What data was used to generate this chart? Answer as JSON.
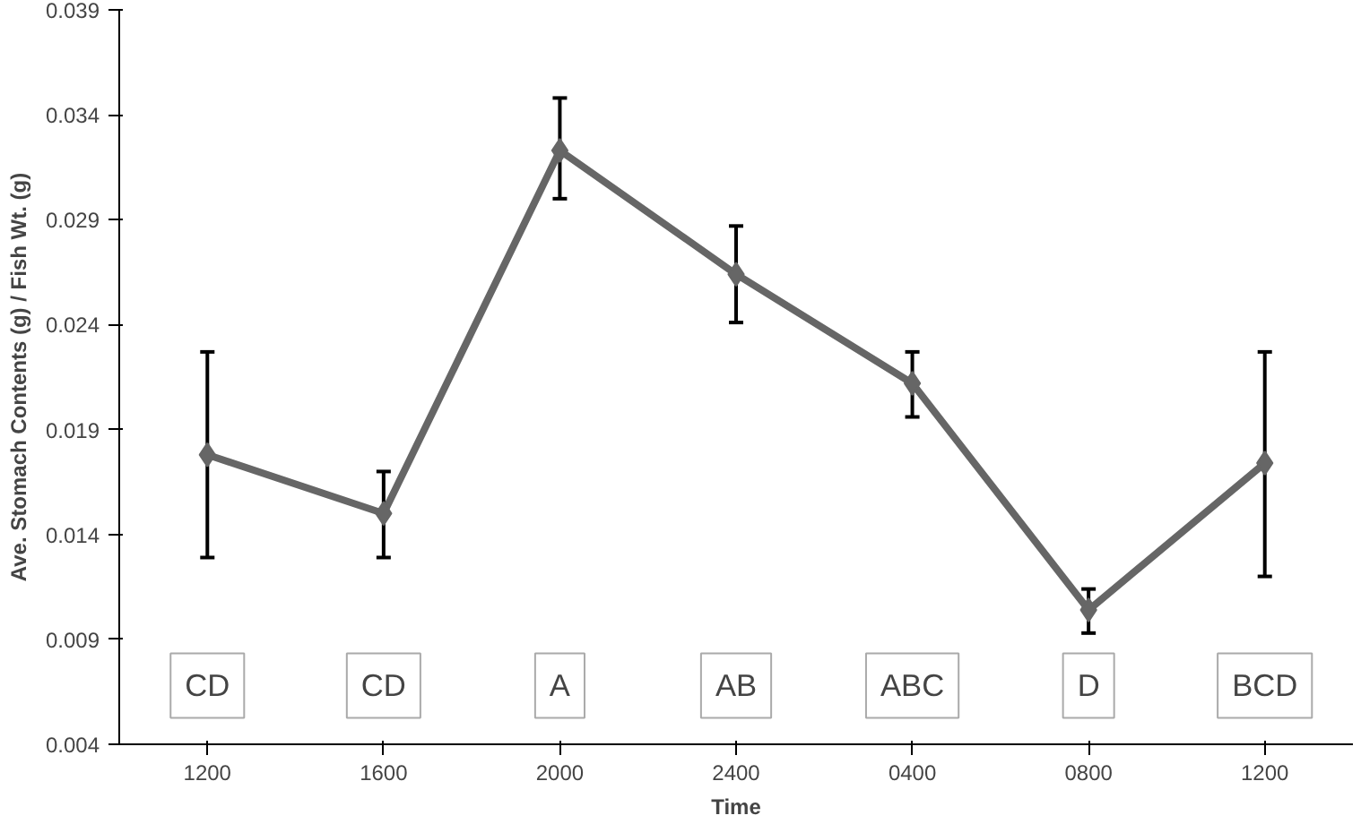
{
  "chart_data": {
    "type": "line",
    "xlabel": "Time",
    "ylabel": "Ave. Stomach Contents (g) / Fish Wt. (g)",
    "categories": [
      "1200",
      "1600",
      "2000",
      "2400",
      "0400",
      "0800",
      "1200"
    ],
    "series": [
      {
        "color": "#666666",
        "values": [
          0.0178,
          0.015,
          0.0323,
          0.0264,
          0.0212,
          0.0104,
          0.0174
        ],
        "errors": [
          [
            0.0129,
            0.0227
          ],
          [
            0.0129,
            0.017
          ],
          [
            0.03,
            0.0348
          ],
          [
            0.0241,
            0.0287
          ],
          [
            0.0196,
            0.0227
          ],
          [
            0.0093,
            0.0114
          ],
          [
            0.012,
            0.0227
          ]
        ]
      }
    ],
    "ylim": [
      0.004,
      0.039
    ],
    "yticks": [
      0.004,
      0.009,
      0.014,
      0.019,
      0.024,
      0.029,
      0.034,
      0.039
    ],
    "annotations": [
      "CD",
      "CD",
      "A",
      "AB",
      "ABC",
      "D",
      "BCD"
    ],
    "marker": "diamond",
    "line_style": "solid",
    "grid": false
  }
}
